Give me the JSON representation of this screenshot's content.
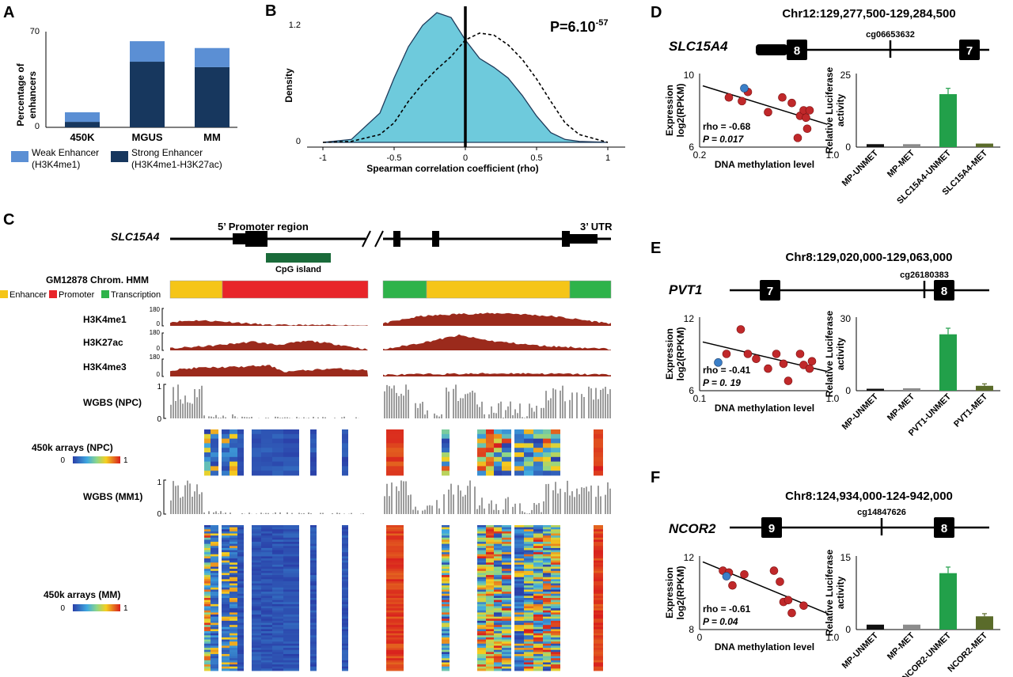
{
  "panel_letters": [
    "A",
    "B",
    "C",
    "D",
    "E",
    "F"
  ],
  "panelA": {
    "ylabel": [
      "Percentage of",
      "enhancers"
    ],
    "yticks": [
      "70",
      "0"
    ],
    "categories": [
      "450K",
      "MGUS",
      "MM"
    ],
    "legend": {
      "weak": [
        "Weak Enhancer",
        "(H3K4me1)"
      ],
      "strong": [
        "Strong Enhancer",
        "(H3K4me1-H3K27ac)"
      ]
    },
    "colors": {
      "weak": "#5b8fd4",
      "strong": "#17375e"
    }
  },
  "panelB": {
    "ylabel": "Density",
    "xlabel": "Spearman correlation coefficient (rho)",
    "yticks": [
      "1.2",
      "0"
    ],
    "xticks": [
      "-1",
      "-0.5",
      "0",
      "0.5",
      "1"
    ],
    "pvalue_base": "P=6.10",
    "pvalue_exp": "-57",
    "fill": "#6ecadc"
  },
  "panelC": {
    "gene": "SLC15A4",
    "promoter_label": "5’ Promoter region",
    "utr_label": "3’ UTR",
    "cpg_label": "CpG island",
    "hmm_title": "GM12878  Chrom. HMM",
    "hmm_legend": [
      "Enhancer",
      "Promoter",
      "Transcription"
    ],
    "hmm_colors": {
      "enhancer": "#f5c518",
      "promoter": "#e8252a",
      "transcription": "#2eb34a"
    },
    "tracks": [
      {
        "name": "H3K4me1",
        "top": "180",
        "bottom": "0"
      },
      {
        "name": "H3K27ac",
        "top": "180",
        "bottom": "0"
      },
      {
        "name": "H3K4me3",
        "top": "180",
        "bottom": "0"
      }
    ],
    "wgbs_npc": {
      "name": "WGBS (NPC)",
      "top": "1",
      "bottom": "0"
    },
    "arr_npc": {
      "name": "450k arrays (NPC)",
      "min": "0",
      "max": "1"
    },
    "wgbs_mm": {
      "name": "WGBS (MM1)",
      "top": "1",
      "bottom": "0"
    },
    "arr_mm": {
      "name": "450k arrays (MM)",
      "min": "0",
      "max": "1"
    },
    "peak_color": "#9b2a1c"
  },
  "panelD": {
    "region": "Chr12:129,277,500-129,284,500",
    "gene": "SLC15A4",
    "exons": [
      "8",
      "7"
    ],
    "cpg_probe": "cg06653632",
    "scatter": {
      "yticks": [
        "10",
        "6"
      ],
      "xticks": [
        "0.2",
        "1.0"
      ],
      "rho": "rho = -0.68",
      "p": "P = 0.017",
      "ylabel": [
        "Expression",
        "log2(RPKM)"
      ],
      "xlabel": "DNA methylation level"
    },
    "bars": {
      "ylabel": [
        "Relative Luciferase",
        "activity"
      ],
      "yticks": [
        "25",
        "0"
      ],
      "categories": [
        "MP-UNMET",
        "MP-MET",
        "SLC15A4-UNMET",
        "SLC15A4-MET"
      ],
      "values": [
        1,
        1,
        18,
        1.2
      ]
    }
  },
  "panelE": {
    "region": "Chr8:129,020,000-129,063,000",
    "gene": "PVT1",
    "exons": [
      "7",
      "8"
    ],
    "cpg_probe": "cg26180383",
    "scatter": {
      "yticks": [
        "12",
        "6"
      ],
      "xticks": [
        "0.1",
        "1.0"
      ],
      "rho": "rho = -0.41",
      "p": "P = 0. 19",
      "ylabel": [
        "Expression",
        "log2(RPKM)"
      ],
      "xlabel": "DNA methylation level"
    },
    "bars": {
      "ylabel": [
        "Relative Luciferase",
        "activity"
      ],
      "yticks": [
        "30",
        "0"
      ],
      "categories": [
        "MP-UNMET",
        "MP-MET",
        "PVT1-UNMET",
        "PVT1-MET"
      ],
      "values": [
        0.8,
        1,
        23,
        2
      ]
    }
  },
  "panelF": {
    "region": "Chr8:124,934,000-124-942,000",
    "gene": "NCOR2",
    "exons": [
      "9",
      "8"
    ],
    "cpg_probe": "cg14847626",
    "scatter": {
      "yticks": [
        "12",
        "8"
      ],
      "xticks": [
        "0",
        "1.0"
      ],
      "rho": "rho = -0.61",
      "p": "P = 0.04",
      "ylabel": [
        "Expression",
        "log2(RPKM)"
      ],
      "xlabel": "DNA methylation level"
    },
    "bars": {
      "ylabel": [
        "Relative Luciferase",
        "activity"
      ],
      "yticks": [
        "15",
        "0"
      ],
      "categories": [
        "MP-UNMET",
        "MP-MET",
        "NCOR2-UNMET",
        "NCOR2-MET"
      ],
      "values": [
        1,
        1,
        11.5,
        2.7
      ]
    }
  },
  "chart_data": [
    {
      "type": "bar",
      "stacked": true,
      "categories": [
        "450K",
        "MGUS",
        "MM"
      ],
      "series": [
        {
          "name": "Strong Enhancer (H3K4me1-H3K27ac)",
          "values": [
            4,
            48,
            44
          ]
        },
        {
          "name": "Weak Enhancer (H3K4me1)",
          "values": [
            7,
            15,
            14
          ]
        }
      ],
      "ylabel": "Percentage of enhancers",
      "ylim": [
        0,
        70
      ]
    },
    {
      "type": "area",
      "xlabel": "Spearman correlation coefficient (rho)",
      "ylabel": "Density",
      "xlim": [
        -1.05,
        1.05
      ],
      "ylim": [
        0,
        1.3
      ],
      "x": [
        -1,
        -0.8,
        -0.6,
        -0.5,
        -0.4,
        -0.3,
        -0.2,
        -0.1,
        0,
        0.1,
        0.2,
        0.3,
        0.4,
        0.5,
        0.6,
        0.7,
        0.8,
        1
      ],
      "series": [
        {
          "values": [
            0,
            0.03,
            0.3,
            0.66,
            0.98,
            1.2,
            1.33,
            1.28,
            1.05,
            0.86,
            0.77,
            0.66,
            0.48,
            0.27,
            0.1,
            0.03,
            0.01,
            0
          ]
        },
        {
          "values": [
            0,
            0.01,
            0.08,
            0.2,
            0.42,
            0.6,
            0.75,
            0.88,
            1.05,
            1.12,
            1.1,
            1.0,
            0.85,
            0.65,
            0.42,
            0.2,
            0.08,
            0
          ]
        }
      ]
    },
    {
      "type": "scatter",
      "x": [
        0.22,
        0.33,
        0.38,
        0.55,
        0.67,
        0.75,
        0.8,
        0.82,
        0.85,
        0.87,
        0.88,
        0.9
      ],
      "y": [
        8.7,
        8.5,
        9.0,
        7.9,
        8.7,
        8.4,
        6.5,
        7.7,
        8.0,
        7.6,
        7.0,
        8.0
      ],
      "highlight": [
        0.35,
        9.2
      ]
    },
    {
      "type": "bar",
      "categories": [
        "MP-UNMET",
        "MP-MET",
        "SLC15A4-UNMET",
        "SLC15A4-MET"
      ],
      "values": [
        1,
        1,
        18,
        1.2
      ],
      "ylim": [
        0,
        25
      ]
    },
    {
      "type": "scatter",
      "x": [
        0.2,
        0.32,
        0.38,
        0.45,
        0.55,
        0.62,
        0.68,
        0.72,
        0.82,
        0.85,
        0.9,
        0.92
      ],
      "y": [
        9.0,
        11.0,
        9.0,
        8.6,
        7.8,
        9.0,
        8.2,
        6.8,
        9.0,
        8.1,
        7.8,
        8.4
      ],
      "highlight": [
        0.13,
        8.3
      ]
    },
    {
      "type": "bar",
      "categories": [
        "MP-UNMET",
        "MP-MET",
        "PVT1-UNMET",
        "PVT1-MET"
      ],
      "values": [
        0.8,
        1,
        23,
        2
      ],
      "ylim": [
        0,
        30
      ]
    },
    {
      "type": "scatter",
      "x": [
        0.17,
        0.22,
        0.25,
        0.35,
        0.6,
        0.65,
        0.68,
        0.72,
        0.75,
        0.85
      ],
      "y": [
        11.2,
        11.1,
        10.4,
        11.0,
        11.2,
        10.6,
        9.5,
        9.6,
        8.9,
        9.3
      ],
      "highlight": [
        0.2,
        10.9
      ]
    },
    {
      "type": "bar",
      "categories": [
        "MP-UNMET",
        "MP-MET",
        "NCOR2-UNMET",
        "NCOR2-MET"
      ],
      "values": [
        1,
        1,
        11.5,
        2.7
      ],
      "ylim": [
        0,
        15
      ]
    }
  ]
}
